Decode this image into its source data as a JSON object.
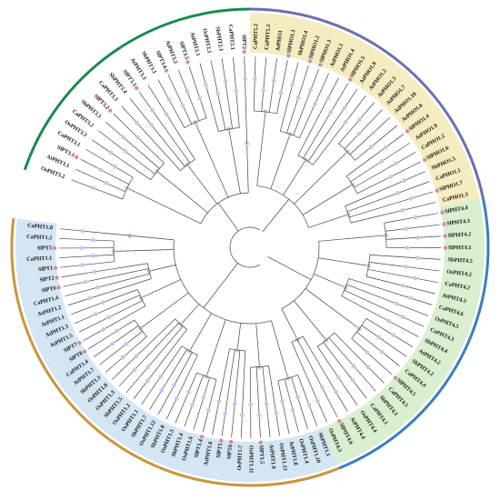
{
  "clades": [
    {
      "id": "PHT3",
      "color": "#1a8a4c",
      "band": "#ffffff",
      "leaves": [
        "OsPHT3.2",
        "AtPHT3.1",
        "SlPT3.1",
        "CaPHT3.1",
        "OsPHT3.3",
        "CaPHT3.2",
        "SbPHT3.3",
        "SlPT3.2",
        "CaPHT3.3",
        "SbPHT3.4",
        "SlPT3.3",
        "AtPHT3.3",
        "SbPHT3.1",
        "SlPT3.4",
        "AtPHT3.2",
        "SlPT3.5",
        "AtPHT2.1",
        "OsPHT2.1",
        "SbPHT2.1",
        "CaPHT2.1",
        "SlPT2"
      ]
    },
    {
      "id": "PHO1",
      "color": "#6a6fb5",
      "band": "#f5ecc0",
      "leaves": [
        "CaPHT5.2",
        "CaPHT5.3",
        "AtPHO1",
        "SlPHO1.1",
        "SbPHO1.4",
        "SlPHO1.2",
        "SlPHO1.3",
        "AtPHO1.1",
        "AtPHO1.4",
        "SlPHO1.5",
        "AtPHO1.8",
        "AtPHO1.2",
        "AtPHO1.3",
        "AtPHO1.7",
        "AtPHO1.10",
        "AtPHO1.6",
        "SlPHO1.4",
        "AtPHO1.9",
        "CaPHO1.2",
        "SlPHO1.6",
        "SbPHO1.5",
        "CaPHO1.1",
        "SlPHO1.7",
        "CaPHO1.3"
      ]
    },
    {
      "id": "PHT4",
      "color": "#3a7fc0",
      "band": "#d9efcf",
      "leaves": [
        "SlPHT4.4",
        "SlPHT4.3",
        "SlPHT4.2",
        "SlPHT4.1",
        "SbPHT4.5",
        "OsPHT4.2",
        "CaPHT4.2",
        "AtPHT4.3",
        "CaPHT4.6",
        "OsPHT4.5",
        "CaPHT4.3",
        "SbPHT4.4",
        "AtPHT4.2",
        "SbPHT4.2",
        "CaPHT4.4",
        "SlPHT4.5",
        "CaPHT4.5",
        "SbPHT4.1",
        "CaPHT4.1",
        "OsPHT4.4",
        "AtPHT4.4",
        "SlPHT4.6",
        "OsPHT4.3"
      ]
    },
    {
      "id": "PHT1",
      "color": "#c8963e",
      "band": "#d4e6f4",
      "leaves": [
        "SbPHT1.1",
        "OsPHT1.10",
        "OsPHT1.4",
        "AtPHT1.8",
        "OsPHT1.13",
        "AtPHT1.9",
        "SlPT1.5",
        "OsPHT1.11",
        "OsPHT1.7",
        "SlPT6",
        "SlPT5",
        "AtPHT1.6",
        "SlPT1.4",
        "OsPHT1.6",
        "SbPHT1.4",
        "OsPHT1.5",
        "SbPHT1.8",
        "OsPHT1.12",
        "SbPHT1.7",
        "OsPHT1.1",
        "OsPHT1.2",
        "SbPHT1.5",
        "OsPHT1.3",
        "OsPHT1.8",
        "SbPHT1.3",
        "AtPHT1.7",
        "CaPHT1.4",
        "SlPT8",
        "SlPT7",
        "AtPHT1.5",
        "AtPHT1.3",
        "AtPHT1.1",
        "AtPHT1.2",
        "CaPHT1.4",
        "SlPT6",
        "SlPT2",
        "SlPT1",
        "CaPHT1.1",
        "SlPT3",
        "CaPHT1.2",
        "CaPHT1.8"
      ]
    }
  ],
  "colors": {
    "branch": "#444444",
    "bootstrap_dot": "#c9c7ef",
    "marker_dot": "#d98aa6",
    "label_text": "#111111"
  }
}
